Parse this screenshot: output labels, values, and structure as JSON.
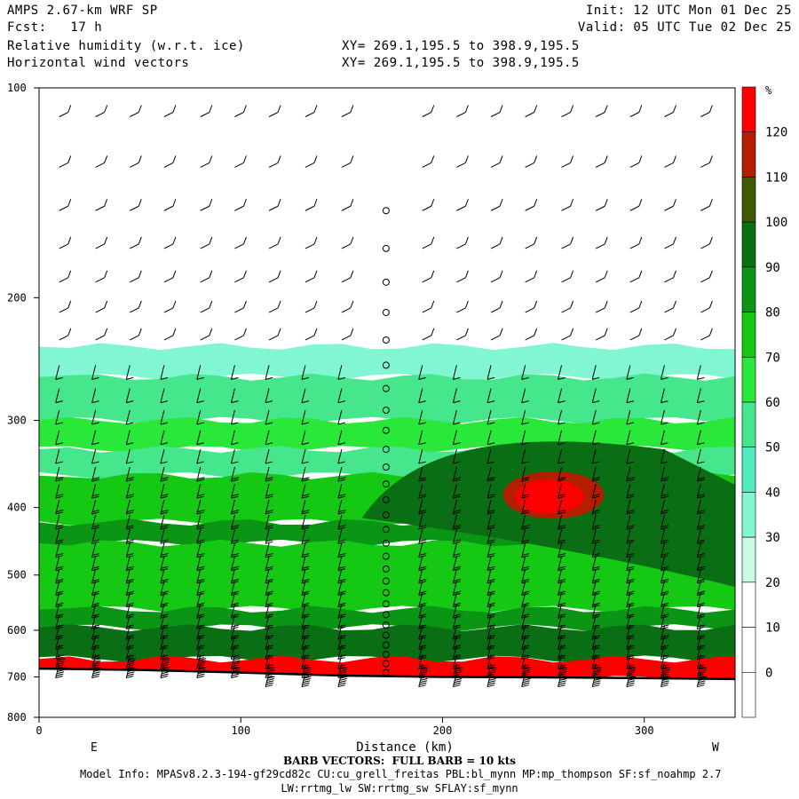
{
  "header": {
    "model": "AMPS 2.67-km WRF SP",
    "fcst": "Fcst:   17 h",
    "init": "Init: 12 UTC Mon 01 Dec 25",
    "valid": "Valid: 05 UTC Tue 02 Dec 25",
    "field1": "Relative humidity (w.r.t. ice)",
    "field2": "Horizontal wind vectors",
    "xy1": "XY= 269.1,195.5 to 398.9,195.5",
    "xy2": "XY= 269.1,195.5 to 398.9,195.5"
  },
  "footer": {
    "barb_note": "BARB VECTORS:  FULL BARB = 10 kts",
    "model_info": "Model Info: MPASv8.2.3-194-gf29cd82c CU:cu_grell_freitas PBL:bl_mynn MP:mp_thompson SF:sf_noahmp 2.7",
    "model_info2": "LW:rrtmg_lw SW:rrtmg_sw SFLAY:sf_mynn"
  },
  "colors": {
    "white": "#ffffff",
    "c30": "#c8fae6",
    "c40": "#82f5d2",
    "c50": "#50ebbe",
    "c60": "#46e68c",
    "c70": "#2ae83a",
    "c80": "#14c814",
    "c90": "#0a9614",
    "c100": "#0a6e14",
    "c110": "#3c5a00",
    "c120": "#b41e00",
    "c130": "#ff0000"
  },
  "chart_data": {
    "type": "cross-section contour",
    "xlabel": "Distance (km)",
    "ylabel": "",
    "xlim": [
      0,
      345
    ],
    "ylim": [
      100,
      800
    ],
    "y_scale": "log",
    "x_ticks": [
      "0",
      "100",
      "200",
      "300"
    ],
    "y_ticks": [
      "100",
      "200",
      "300",
      "400",
      "500",
      "600",
      "700",
      "800"
    ],
    "end_labels": {
      "left": "E",
      "right": "W"
    },
    "colorbar": {
      "unit": "%",
      "labels": [
        "0",
        "10",
        "20",
        "30",
        "40",
        "50",
        "60",
        "70",
        "80",
        "90",
        "100",
        "110",
        "120"
      ],
      "levels": [
        -10,
        0,
        10,
        20,
        30,
        40,
        50,
        60,
        70,
        80,
        90,
        100,
        110,
        120,
        130
      ]
    },
    "surface_pressure": [
      [
        0,
        681
      ],
      [
        50,
        684
      ],
      [
        100,
        690
      ],
      [
        150,
        697
      ],
      [
        200,
        700
      ],
      [
        250,
        701
      ],
      [
        300,
        703
      ],
      [
        345,
        705
      ]
    ],
    "layers": [
      {
        "top": 100,
        "bottom": 235,
        "rh": 0
      },
      {
        "top": 235,
        "bottom": 260,
        "rh": 30
      },
      {
        "top": 260,
        "bottom": 300,
        "rh": 50
      },
      {
        "top": 300,
        "bottom": 330,
        "rh": 60
      },
      {
        "top": 330,
        "bottom": 360,
        "rh": 50
      },
      {
        "top": 360,
        "bottom": 420,
        "rh": 70
      },
      {
        "top": 420,
        "bottom": 450,
        "rh": 80
      },
      {
        "top": 450,
        "bottom": 560,
        "rh": 70
      },
      {
        "top": 560,
        "bottom": 595,
        "rh": 80
      },
      {
        "top": 595,
        "bottom": 660,
        "rh": 90
      },
      {
        "top": 660,
        "bottom": 705,
        "rh": 125
      }
    ],
    "features": [
      {
        "name": "moist plume",
        "rh": 90,
        "x_range": [
          160,
          345
        ],
        "p_range": [
          330,
          520
        ]
      },
      {
        "name": "core",
        "rh": 110,
        "x_range": [
          230,
          280
        ],
        "p_range": [
          355,
          415
        ]
      },
      {
        "name": "max",
        "rh": 125,
        "x_range": [
          236,
          270
        ],
        "p_range": [
          365,
          408
        ]
      }
    ],
    "barb_columns_km": [
      10,
      28,
      45,
      62,
      80,
      97,
      114,
      132,
      150,
      172,
      190,
      207,
      224,
      241,
      259,
      276,
      293,
      310,
      328
    ],
    "calm_column_km": 172
  }
}
